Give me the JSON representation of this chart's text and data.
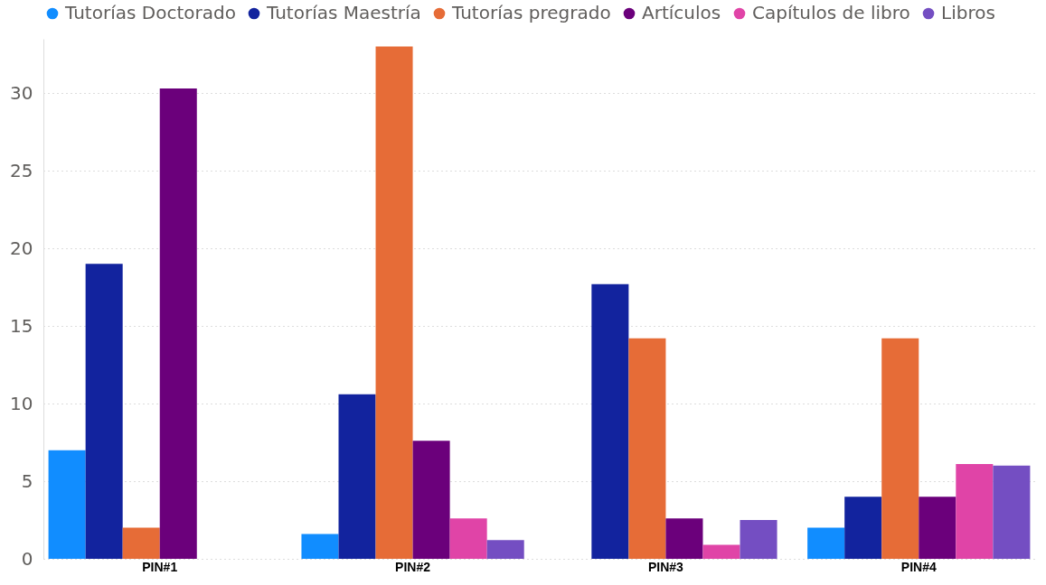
{
  "chart_data": {
    "type": "bar",
    "categories": [
      "PIN#1",
      "PIN#2",
      "PIN#3",
      "PIN#4"
    ],
    "series": [
      {
        "name": "Tutorías Doctorado",
        "color": "#118dff",
        "values": [
          7.0,
          1.6,
          null,
          2.0
        ]
      },
      {
        "name": "Tutorías Maestría",
        "color": "#12239e",
        "values": [
          19.0,
          10.6,
          17.7,
          4.0
        ]
      },
      {
        "name": "Tutorías pregrado",
        "color": "#e66c37",
        "values": [
          2.0,
          33.0,
          14.2,
          14.2
        ]
      },
      {
        "name": "Artículos",
        "color": "#6b007b",
        "values": [
          30.3,
          7.6,
          2.6,
          4.0
        ]
      },
      {
        "name": "Capítulos de libro",
        "color": "#e044a7",
        "values": [
          null,
          2.6,
          0.9,
          6.1
        ]
      },
      {
        "name": "Libros",
        "color": "#744ec2",
        "values": [
          null,
          1.2,
          2.5,
          6.0
        ]
      }
    ],
    "ylim": [
      0,
      33.5
    ],
    "yticks": [
      0,
      5,
      10,
      15,
      20,
      25,
      30
    ],
    "grid": "y",
    "legend": "top left"
  }
}
